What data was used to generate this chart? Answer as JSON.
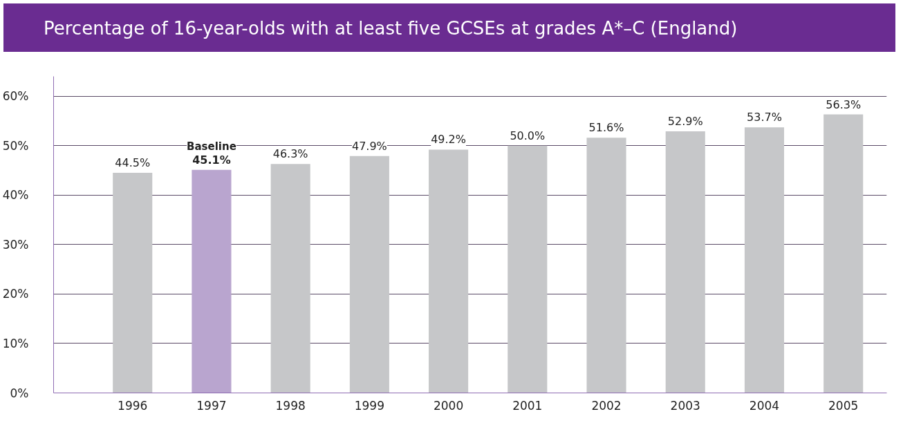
{
  "chart_data": {
    "type": "bar",
    "title": "Percentage of 16-year-olds with at least five GCSEs at grades A*–C (England)",
    "categories": [
      "1996",
      "1997",
      "1998",
      "1999",
      "2000",
      "2001",
      "2002",
      "2003",
      "2004",
      "2005"
    ],
    "values": [
      44.5,
      45.1,
      46.3,
      47.9,
      49.2,
      50.0,
      51.6,
      52.9,
      53.7,
      56.3
    ],
    "colors": [
      "#c6c7c9",
      "#b9a5cf",
      "#c6c7c9",
      "#c6c7c9",
      "#c6c7c9",
      "#c6c7c9",
      "#c6c7c9",
      "#c6c7c9",
      "#c6c7c9",
      "#c6c7c9"
    ],
    "value_labels": [
      "44.5%",
      "45.1%",
      "46.3%",
      "47.9%",
      "49.2%",
      "50.0%",
      "51.6%",
      "52.9%",
      "53.7%",
      "56.3%"
    ],
    "annotations": [
      {
        "text": "Baseline",
        "x": "1997",
        "y": 45.1
      }
    ],
    "ylim": [
      0,
      64
    ],
    "yticks": [
      {
        "value": 0,
        "label": "0%"
      },
      {
        "value": 10,
        "label": "10%"
      },
      {
        "value": 20,
        "label": "20%"
      },
      {
        "value": 30,
        "label": "30%"
      },
      {
        "value": 40,
        "label": "40%"
      },
      {
        "value": 50,
        "label": "50%"
      },
      {
        "value": 60,
        "label": "60%"
      }
    ],
    "grid": "y"
  }
}
